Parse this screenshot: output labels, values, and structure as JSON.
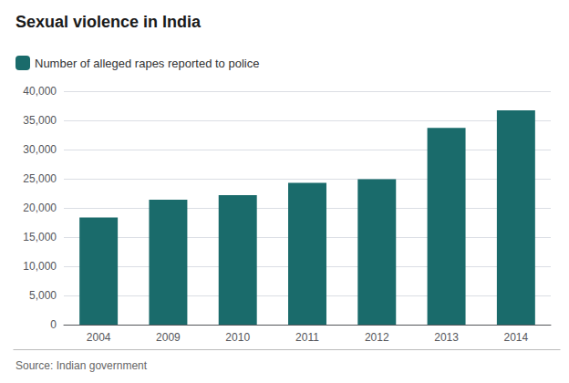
{
  "chart_data": {
    "type": "bar",
    "title": "Sexual violence in India",
    "categories": [
      "2004",
      "2009",
      "2010",
      "2011",
      "2012",
      "2013",
      "2014"
    ],
    "series": [
      {
        "name": "Number of alleged rapes reported to police",
        "color": "#1a6b6b",
        "values": [
          18359,
          21397,
          22172,
          24295,
          24923,
          33707,
          36735
        ]
      }
    ],
    "ylim": [
      0,
      40000
    ],
    "yticks": [
      0,
      {
        "value": 5000,
        "label": "5,000"
      },
      {
        "value": 10000,
        "label": "10,000"
      },
      {
        "value": 15000,
        "label": "15,000"
      },
      {
        "value": 20000,
        "label": "20,000"
      },
      {
        "value": 25000,
        "label": "25,000"
      },
      {
        "value": 30000,
        "label": "30,000"
      },
      {
        "value": 35000,
        "label": "35,000"
      },
      {
        "value": 40000,
        "label": "40,000"
      }
    ],
    "grid": true,
    "legend": "top-left",
    "annotations": [
      "Source: Indian government"
    ]
  }
}
